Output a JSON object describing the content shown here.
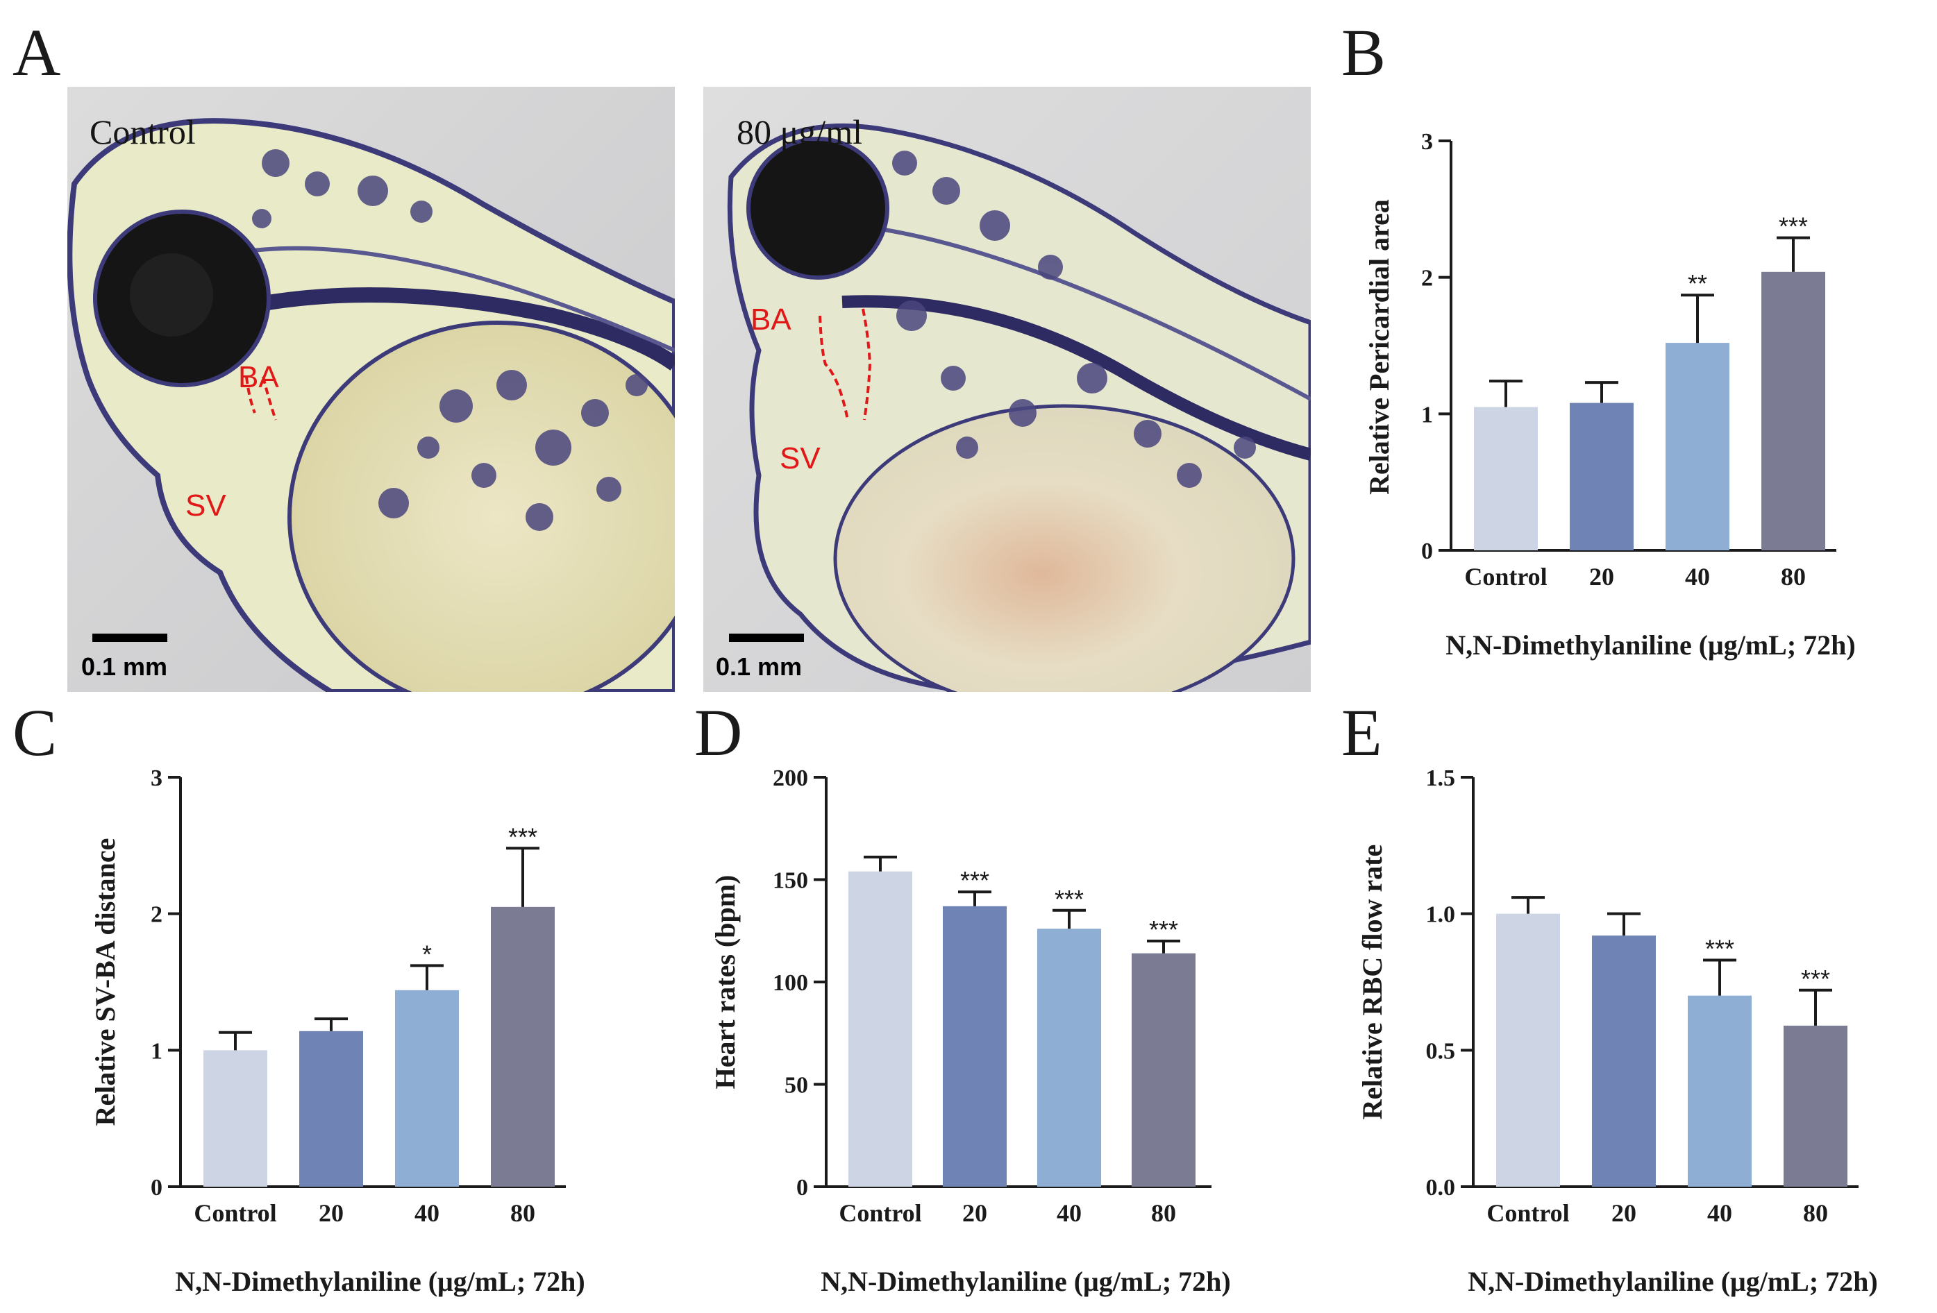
{
  "figure": {
    "panel_letters": [
      "A",
      "B",
      "C",
      "D",
      "E"
    ]
  },
  "photos": [
    {
      "label": "Control",
      "scalebar_label": "0.1 mm",
      "annotations": [
        "BA",
        "SV"
      ],
      "annotation_color": "#e01818"
    },
    {
      "label": "80 μg/ml",
      "scalebar_label": "0.1 mm",
      "annotations": [
        "BA",
        "SV"
      ],
      "annotation_color": "#e01818"
    }
  ],
  "colors": {
    "bars": [
      "#cdd4e4",
      "#6f83b4",
      "#8faed4",
      "#7b7b93"
    ],
    "axis": "#1a1a1a"
  },
  "chart_data": [
    {
      "panel": "B",
      "type": "bar",
      "categories": [
        "Control",
        "20",
        "40",
        "80"
      ],
      "values": [
        1.05,
        1.08,
        1.52,
        2.04
      ],
      "errors": [
        0.19,
        0.15,
        0.35,
        0.25
      ],
      "significance": [
        "",
        "",
        "**",
        "***"
      ],
      "ylabel": "Relative Pericardial area",
      "xlabel": "N,N-Dimethylaniline (μg/mL; 72h)",
      "ylim": [
        0,
        3
      ],
      "yticks": [
        0,
        1,
        2,
        3
      ],
      "ytick_labels": [
        "0",
        "1",
        "2",
        "3"
      ]
    },
    {
      "panel": "C",
      "type": "bar",
      "categories": [
        "Control",
        "20",
        "40",
        "80"
      ],
      "values": [
        1.0,
        1.14,
        1.44,
        2.05
      ],
      "errors": [
        0.13,
        0.09,
        0.18,
        0.43
      ],
      "significance": [
        "",
        "",
        "*",
        "***"
      ],
      "ylabel": "Relative SV-BA distance",
      "xlabel": "N,N-Dimethylaniline (μg/mL; 72h)",
      "ylim": [
        0,
        3
      ],
      "yticks": [
        0,
        1,
        2,
        3
      ],
      "ytick_labels": [
        "0",
        "1",
        "2",
        "3"
      ]
    },
    {
      "panel": "D",
      "type": "bar",
      "categories": [
        "Control",
        "20",
        "40",
        "80"
      ],
      "values": [
        154,
        137,
        126,
        114
      ],
      "errors": [
        7,
        7,
        9,
        6
      ],
      "significance": [
        "",
        "***",
        "***",
        "***"
      ],
      "ylabel": "Heart rates (bpm)",
      "xlabel": "N,N-Dimethylaniline (μg/mL; 72h)",
      "ylim": [
        0,
        200
      ],
      "yticks": [
        0,
        50,
        100,
        150,
        200
      ],
      "ytick_labels": [
        "0",
        "50",
        "100",
        "150",
        "200"
      ]
    },
    {
      "panel": "E",
      "type": "bar",
      "categories": [
        "Control",
        "20",
        "40",
        "80"
      ],
      "values": [
        1.0,
        0.92,
        0.7,
        0.59
      ],
      "errors": [
        0.06,
        0.08,
        0.13,
        0.13
      ],
      "significance": [
        "",
        "",
        "***",
        "***"
      ],
      "ylabel": "Relative RBC flow rate",
      "xlabel": "N,N-Dimethylaniline (μg/mL; 72h)",
      "ylim": [
        0,
        1.5
      ],
      "yticks": [
        0,
        0.5,
        1.0,
        1.5
      ],
      "ytick_labels": [
        "0.0",
        "0.5",
        "1.0",
        "1.5"
      ]
    }
  ]
}
